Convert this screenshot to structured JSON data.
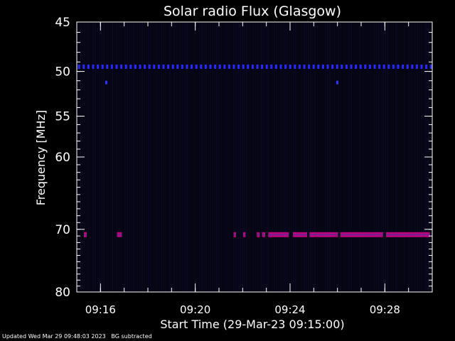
{
  "chart_data": {
    "type": "heatmap",
    "title": "Solar radio Flux (Glasgow)",
    "xlabel": "Start Time (29-Mar-23 09:15:00)",
    "ylabel": "Frequency [MHz]",
    "x_range_minutes": [
      15.0,
      30.0
    ],
    "xticks": [
      {
        "minute": 16,
        "label": "09:16"
      },
      {
        "minute": 20,
        "label": "09:20"
      },
      {
        "minute": 24,
        "label": "09:24"
      },
      {
        "minute": 28,
        "label": "09:28"
      }
    ],
    "yticks": [
      45,
      50,
      55,
      60,
      70,
      80
    ],
    "ylim": [
      45,
      80
    ],
    "y_scale": "log",
    "y_inverted": true,
    "colors": {
      "background": "#000000",
      "axes": "#ffffff",
      "noise": "#0a0a2a",
      "band_50": "#2828ff",
      "band_70": "#c0007a"
    },
    "features": [
      {
        "name": "line near 49.5 MHz",
        "freq": 49.5,
        "color": "#2828ff",
        "dashed": true,
        "x_start": 15.05,
        "x_end": 29.95
      },
      {
        "name": "blip near 51.2 MHz",
        "freq": 51.2,
        "color": "#3030ff",
        "dashed": false,
        "segments": [
          [
            16.2,
            16.28
          ],
          [
            25.95,
            26.03
          ]
        ]
      },
      {
        "name": "band near 70.8 MHz",
        "freq": 70.8,
        "color": "#c0007a",
        "dashed": false,
        "segments": [
          [
            15.3,
            15.42
          ],
          [
            16.7,
            16.9
          ],
          [
            21.62,
            21.72
          ],
          [
            22.02,
            22.12
          ],
          [
            22.6,
            22.72
          ],
          [
            22.82,
            22.95
          ],
          [
            23.08,
            23.95
          ],
          [
            24.12,
            24.72
          ],
          [
            24.82,
            26.02
          ],
          [
            26.12,
            27.92
          ],
          [
            28.05,
            29.9
          ]
        ]
      }
    ]
  },
  "footer": {
    "updated": "Updated Wed Mar 29 09:48:03 2023",
    "note": "BG subtracted"
  }
}
